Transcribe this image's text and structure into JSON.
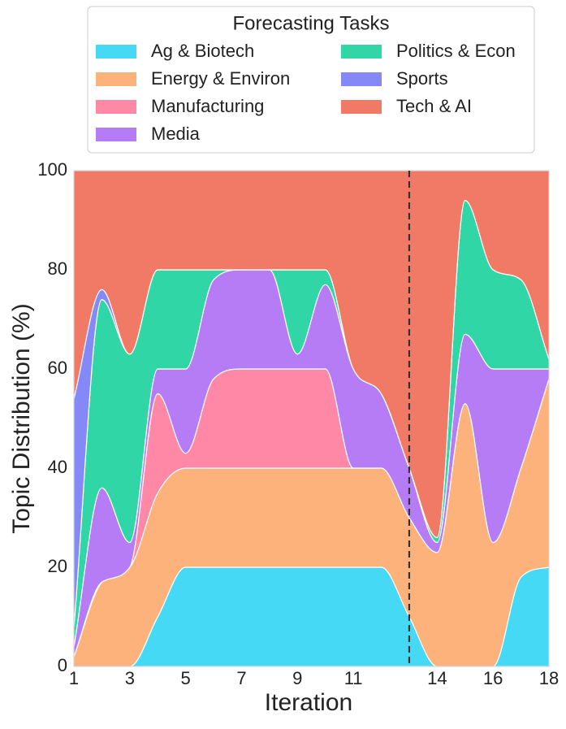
{
  "chart_data": {
    "type": "stacked_area",
    "xlabel": "Iteration",
    "ylabel": "Topic Distribution (%)",
    "legend_title": "Forecasting Tasks",
    "legend": "top",
    "x": [
      1,
      2,
      3,
      4,
      5,
      6,
      7,
      8,
      9,
      10,
      11,
      12,
      13,
      14,
      15,
      16,
      17,
      18
    ],
    "xlim": [
      1,
      18
    ],
    "xticks": [
      1,
      3,
      5,
      7,
      9,
      11,
      14,
      16,
      18
    ],
    "ylim": [
      0,
      100
    ],
    "yticks": [
      0,
      20,
      40,
      60,
      80,
      100
    ],
    "grid": true,
    "vline": 13,
    "series": [
      {
        "name": "Ag & Biotech",
        "color": "#45d9f5",
        "values": [
          0,
          0,
          0,
          10,
          20,
          20,
          20,
          20,
          20,
          20,
          20,
          20,
          10,
          0,
          0,
          0,
          18,
          20
        ]
      },
      {
        "name": "Energy & Environ",
        "color": "#fdb27c",
        "values": [
          2,
          17,
          20,
          25,
          20,
          20,
          20,
          20,
          20,
          20,
          20,
          20,
          20,
          23,
          53,
          25,
          22,
          38
        ]
      },
      {
        "name": "Manufacturing",
        "color": "#fe88a5",
        "values": [
          0,
          0,
          0,
          20,
          3,
          18,
          20,
          20,
          20,
          20,
          0,
          0,
          0,
          0,
          0,
          0,
          0,
          0
        ]
      },
      {
        "name": "Media",
        "color": "#b57cf5",
        "values": [
          2,
          19,
          5,
          5,
          17,
          20,
          20,
          20,
          3,
          17,
          20,
          15,
          10,
          2,
          14,
          35,
          20,
          2
        ]
      },
      {
        "name": "Politics & Econ",
        "color": "#31d6a6",
        "values": [
          4,
          38,
          38,
          20,
          20,
          2,
          0,
          0,
          17,
          3,
          0,
          0,
          0,
          1,
          27,
          20,
          18,
          2
        ]
      },
      {
        "name": "Sports",
        "color": "#8489f7",
        "values": [
          46,
          2,
          0,
          0,
          0,
          0,
          0,
          0,
          0,
          0,
          0,
          0,
          0,
          0,
          0,
          0,
          0,
          0
        ]
      },
      {
        "name": "Tech & AI",
        "color": "#f07a66",
        "values": [
          46,
          24,
          37,
          20,
          20,
          20,
          20,
          20,
          20,
          20,
          40,
          45,
          60,
          74,
          6,
          20,
          22,
          38
        ]
      }
    ]
  }
}
